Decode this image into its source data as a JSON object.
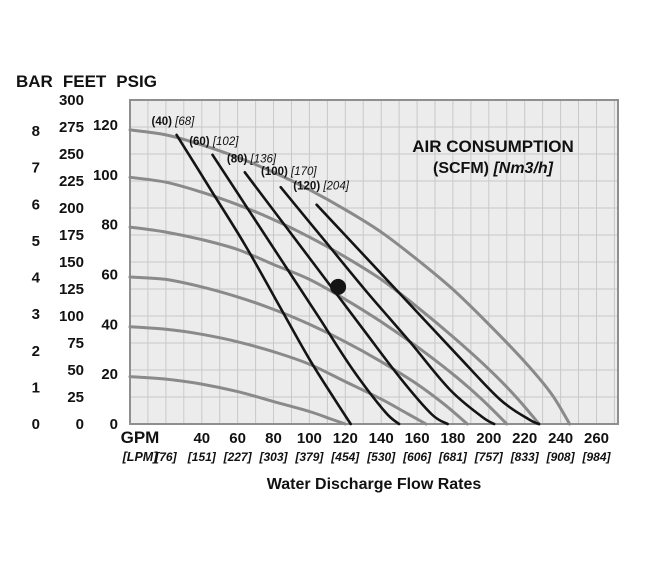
{
  "header": {
    "bar": "BAR",
    "feet": "FEET",
    "psig": "PSIG"
  },
  "chart_data": {
    "type": "line",
    "title": "AIR CONSUMPTION",
    "title_unit_bold": "(SCFM)",
    "title_unit_italic": "[Nm3/h]",
    "xlabel": "Water Discharge Flow Rates",
    "x_unit_primary": "GPM",
    "x_unit_secondary": "[LPM]",
    "x_range_gpm": [
      0,
      272
    ],
    "feet_max": 300,
    "psi_to_feet": 2.3077,
    "bar_to_feet": 33.9,
    "grid_step_gpm": 10,
    "grid_step_feet": 25,
    "gpm_ticks": [
      40,
      60,
      80,
      100,
      120,
      140,
      160,
      180,
      200,
      220,
      240,
      260
    ],
    "lpm_ticks": [
      {
        "gpm": 20,
        "label": "[76]"
      },
      {
        "gpm": 40,
        "label": "[151]"
      },
      {
        "gpm": 60,
        "label": "[227]"
      },
      {
        "gpm": 80,
        "label": "[303]"
      },
      {
        "gpm": 100,
        "label": "[379]"
      },
      {
        "gpm": 120,
        "label": "[454]"
      },
      {
        "gpm": 140,
        "label": "[530]"
      },
      {
        "gpm": 160,
        "label": "[606]"
      },
      {
        "gpm": 180,
        "label": "[681]"
      },
      {
        "gpm": 200,
        "label": "[757]"
      },
      {
        "gpm": 220,
        "label": "[833]"
      },
      {
        "gpm": 240,
        "label": "[908]"
      },
      {
        "gpm": 260,
        "label": "[984]"
      }
    ],
    "bar_ticks": [
      8,
      7,
      6,
      5,
      4,
      3,
      2,
      1,
      0
    ],
    "feet_ticks": [
      300,
      275,
      250,
      225,
      200,
      175,
      150,
      125,
      100,
      75,
      50,
      25,
      0
    ],
    "psig_ticks": [
      120,
      100,
      80,
      60,
      40,
      20,
      0
    ],
    "pressure_curves": [
      {
        "psig": 120,
        "points": [
          [
            0,
            118
          ],
          [
            20,
            116
          ],
          [
            40,
            112
          ],
          [
            60,
            107
          ],
          [
            80,
            101
          ],
          [
            100,
            94
          ],
          [
            120,
            86
          ],
          [
            140,
            77
          ],
          [
            160,
            66
          ],
          [
            180,
            54
          ],
          [
            200,
            40
          ],
          [
            220,
            25
          ],
          [
            235,
            12
          ],
          [
            245,
            0
          ]
        ]
      },
      {
        "psig": 100,
        "points": [
          [
            0,
            99
          ],
          [
            20,
            97
          ],
          [
            40,
            93
          ],
          [
            60,
            88
          ],
          [
            80,
            82
          ],
          [
            100,
            75
          ],
          [
            120,
            67
          ],
          [
            140,
            58
          ],
          [
            160,
            47
          ],
          [
            180,
            35
          ],
          [
            200,
            22
          ],
          [
            215,
            11
          ],
          [
            228,
            0
          ]
        ]
      },
      {
        "psig": 80,
        "points": [
          [
            0,
            79
          ],
          [
            20,
            77
          ],
          [
            40,
            74
          ],
          [
            60,
            70
          ],
          [
            80,
            64
          ],
          [
            100,
            58
          ],
          [
            120,
            50
          ],
          [
            140,
            41
          ],
          [
            160,
            31
          ],
          [
            180,
            20
          ],
          [
            196,
            10
          ],
          [
            210,
            0
          ]
        ]
      },
      {
        "psig": 60,
        "points": [
          [
            0,
            59
          ],
          [
            20,
            58
          ],
          [
            40,
            55
          ],
          [
            60,
            51
          ],
          [
            80,
            46
          ],
          [
            100,
            40
          ],
          [
            120,
            33
          ],
          [
            140,
            25
          ],
          [
            160,
            16
          ],
          [
            175,
            8
          ],
          [
            188,
            0
          ]
        ]
      },
      {
        "psig": 40,
        "points": [
          [
            0,
            39
          ],
          [
            20,
            38
          ],
          [
            40,
            36
          ],
          [
            60,
            33
          ],
          [
            80,
            29
          ],
          [
            100,
            24
          ],
          [
            120,
            17
          ],
          [
            140,
            10
          ],
          [
            155,
            4
          ],
          [
            165,
            0
          ]
        ]
      },
      {
        "psig": 20,
        "points": [
          [
            0,
            19
          ],
          [
            20,
            18
          ],
          [
            40,
            16
          ],
          [
            60,
            13
          ],
          [
            80,
            9
          ],
          [
            100,
            5
          ],
          [
            112,
            2
          ],
          [
            120,
            0
          ]
        ]
      }
    ],
    "air_curves": [
      {
        "scfm": "(40)",
        "nm3h": "[68]",
        "label_pos": [
          12,
          120
        ],
        "points": [
          [
            26,
            116
          ],
          [
            45,
            94
          ],
          [
            64,
            72
          ],
          [
            82,
            49
          ],
          [
            100,
            26
          ],
          [
            114,
            10
          ],
          [
            123,
            0
          ]
        ]
      },
      {
        "scfm": "(60)",
        "nm3h": "[102]",
        "label_pos": [
          33,
          112
        ],
        "points": [
          [
            46,
            108
          ],
          [
            66,
            86
          ],
          [
            86,
            64
          ],
          [
            106,
            42
          ],
          [
            124,
            22
          ],
          [
            142,
            5
          ],
          [
            150,
            0
          ]
        ]
      },
      {
        "scfm": "(80)",
        "nm3h": "[136]",
        "label_pos": [
          54,
          105
        ],
        "points": [
          [
            64,
            101
          ],
          [
            86,
            80
          ],
          [
            108,
            59
          ],
          [
            130,
            38
          ],
          [
            150,
            19
          ],
          [
            168,
            4
          ],
          [
            177,
            0
          ]
        ]
      },
      {
        "scfm": "(100)",
        "nm3h": "[170]",
        "label_pos": [
          73,
          100
        ],
        "points": [
          [
            84,
            95
          ],
          [
            108,
            74
          ],
          [
            132,
            53
          ],
          [
            156,
            33
          ],
          [
            178,
            14
          ],
          [
            196,
            3
          ],
          [
            203,
            0
          ]
        ]
      },
      {
        "scfm": "(120)",
        "nm3h": "[204]",
        "label_pos": [
          91,
          94
        ],
        "points": [
          [
            104,
            88
          ],
          [
            130,
            68
          ],
          [
            156,
            48
          ],
          [
            182,
            28
          ],
          [
            206,
            10
          ],
          [
            222,
            2
          ],
          [
            228,
            0
          ]
        ]
      }
    ],
    "marker": {
      "gpm": 116,
      "psig": 55
    },
    "colors": {
      "pressure_curve": "#8a8a8a",
      "air_curve": "#141414",
      "grid": "#c9c9c9",
      "plot_bg": "#ececec",
      "border": "#8f8f8f",
      "text": "#111111"
    }
  }
}
